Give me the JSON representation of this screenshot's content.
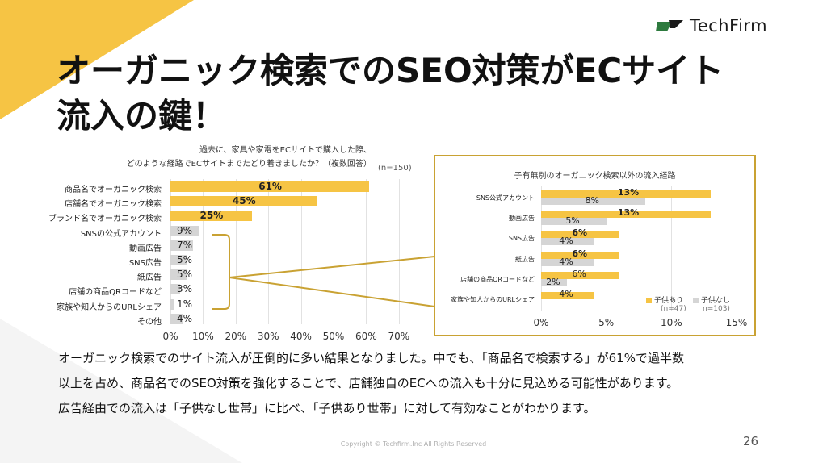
{
  "brand": {
    "name": "TechFirm",
    "accent": "#f6c444",
    "box_border": "#c9a233",
    "grey_bar": "#d5d5d5",
    "logo_green": "#2d7a3e"
  },
  "title": {
    "line1": "オーガニック検索でのSEO対策がECサイト",
    "line2": "流入の鍵！"
  },
  "chart_data": [
    {
      "type": "bar",
      "orientation": "horizontal",
      "title": "過去に、家具や家電をECサイトで購入した際、どのような経路でECサイトまでたどり着きましたか？（複数回答）",
      "title_line1": "過去に、家具や家電をECサイトで購入した際、",
      "title_line2": "どのような経路でECサイトまでたどり着きましたか？（複数回答）",
      "note": "(n=150)",
      "categories": [
        "商品名でオーガニック検索",
        "店舗名でオーガニック検索",
        "ブランド名でオーガニック検索",
        "SNSの公式アカウント",
        "動画広告",
        "SNS広告",
        "紙広告",
        "店舗の商品QRコードなど",
        "家族や知人からのURLシェア",
        "その他"
      ],
      "values": [
        61,
        45,
        25,
        9,
        7,
        5,
        5,
        3,
        1,
        4
      ],
      "value_labels": [
        "61%",
        "45%",
        "25%",
        "9%",
        "7%",
        "5%",
        "5%",
        "3%",
        "1%",
        "4%"
      ],
      "highlight": [
        true,
        true,
        true,
        false,
        false,
        false,
        false,
        false,
        false,
        false
      ],
      "xlim": [
        0,
        70
      ],
      "xticks": [
        "0%",
        "10%",
        "20%",
        "30%",
        "40%",
        "50%",
        "60%",
        "70%"
      ],
      "grid": true
    },
    {
      "type": "bar",
      "orientation": "horizontal",
      "title": "子有無別のオーガニック検索以外の流入経路",
      "categories": [
        "SNS公式アカウント",
        "動画広告",
        "SNS広告",
        "紙広告",
        "店舗の商品QRコードなど",
        "家族や知人からのURLシェア"
      ],
      "series": [
        {
          "name": "子供あり",
          "note": "(n=47)",
          "values": [
            13,
            13,
            6,
            6,
            6,
            4
          ],
          "labels": [
            "13%",
            "13%",
            "6%",
            "6%",
            "6%",
            "4%"
          ]
        },
        {
          "name": "子供なし",
          "note": "n=103)",
          "values": [
            8,
            5,
            4,
            4,
            2,
            0
          ],
          "labels": [
            "8%",
            "5%",
            "4%",
            "4%",
            "2%",
            ""
          ]
        }
      ],
      "xlim": [
        0,
        15
      ],
      "xticks": [
        "0%",
        "5%",
        "10%",
        "15%"
      ],
      "legend": "bottom-right",
      "grid": true
    }
  ],
  "body": {
    "line1": "オーガニック検索でのサイト流入が圧倒的に多い結果となりました。中でも、「商品名で検索する」が61%で過半数",
    "line2": "以上を占め、商品名でのSEO対策を強化することで、店舗独自のECへの流入も十分に見込める可能性があります。",
    "line3": "広告経由での流入は「子供なし世帯」に比べ、「子供あり世帯」に対して有効なことがわかります。"
  },
  "footer": {
    "copyright": "Copyright © Techfirm.Inc All Rights Reserved",
    "page_number": "26"
  }
}
